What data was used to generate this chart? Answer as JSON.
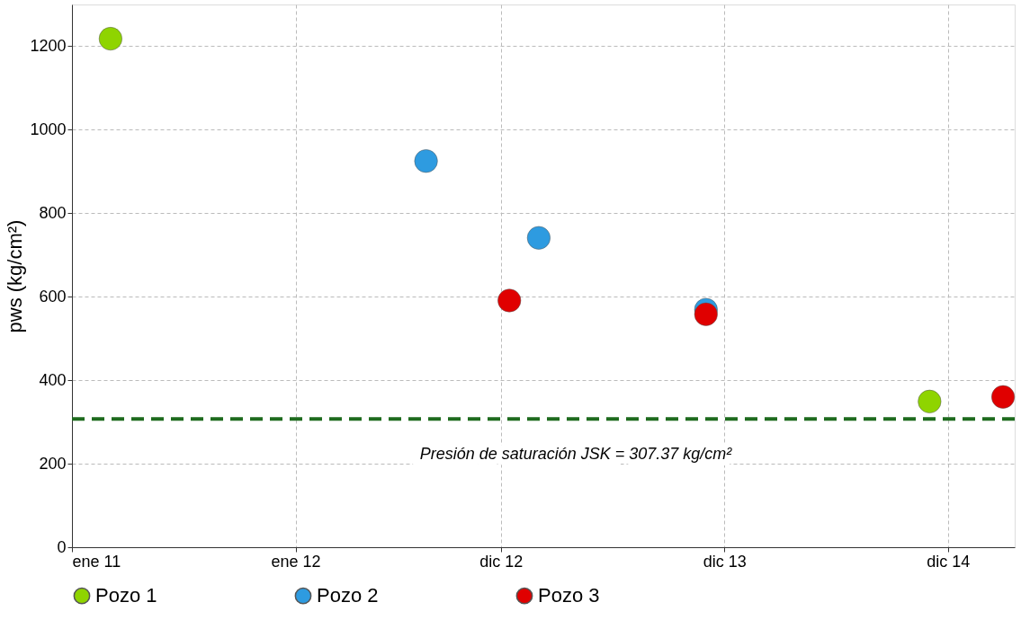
{
  "chart_data": {
    "type": "scatter",
    "ylabel": "pws (kg/cm²)",
    "xlim": [
      "2011-01-01",
      "2015-03-20"
    ],
    "xticks": [
      {
        "value": "2011-01-01",
        "label": "ene 11"
      },
      {
        "value": "2012-01-01",
        "label": "ene 12"
      },
      {
        "value": "2012-12-01",
        "label": "dic 12"
      },
      {
        "value": "2013-12-01",
        "label": "dic 13"
      },
      {
        "value": "2014-12-01",
        "label": "dic 14"
      }
    ],
    "ylim": [
      0,
      1300
    ],
    "yticks": [
      0,
      200,
      400,
      600,
      800,
      1000,
      1200
    ],
    "grid": true,
    "legend": "bottom",
    "marker": "circle",
    "series": [
      {
        "name": "Pozo 1",
        "color": "#8fd400",
        "x": [
          "2011-03-05",
          "2014-11-01"
        ],
        "values": [
          1218,
          349
        ]
      },
      {
        "name": "Pozo 2",
        "color": "#2e9be0",
        "x": [
          "2012-08-01",
          "2013-02-01",
          "2013-11-01"
        ],
        "values": [
          925,
          741,
          569
        ]
      },
      {
        "name": "Pozo 3",
        "color": "#e00000",
        "x": [
          "2012-12-15",
          "2013-11-01",
          "2015-03-01"
        ],
        "values": [
          591,
          558,
          360
        ]
      }
    ],
    "ref_lines": [
      {
        "axis": "y",
        "value": 307.37,
        "label": "Presión de saturación  JSK = 307.37 kg/cm²",
        "color": "#1e6b1e",
        "line_style": "dashed"
      }
    ]
  }
}
